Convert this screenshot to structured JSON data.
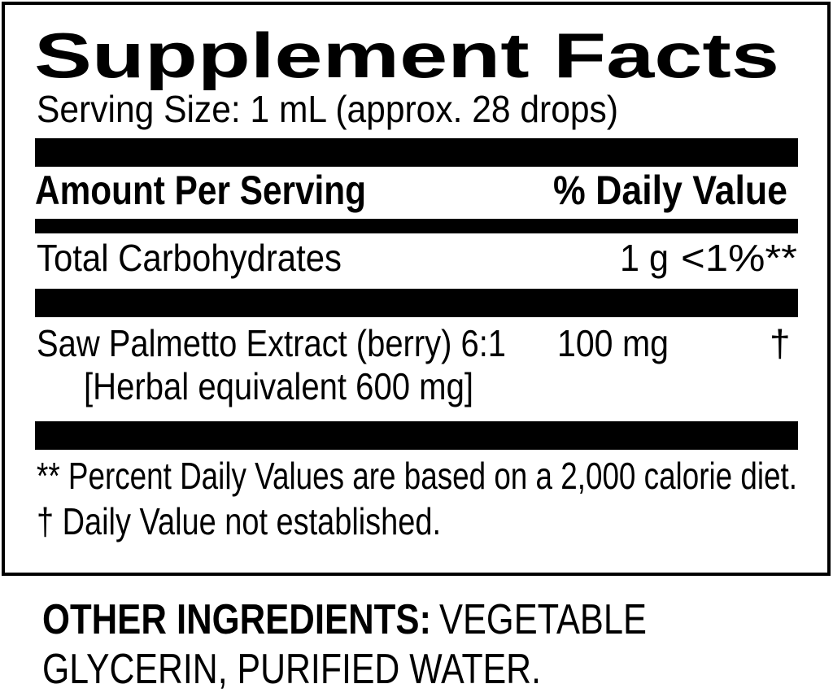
{
  "label": {
    "title": "Supplement Facts",
    "serving_size": "Serving Size: 1 mL (approx. 28 drops)",
    "header": {
      "amount": "Amount Per Serving",
      "daily_value": "% Daily Value"
    },
    "rows": [
      {
        "name": "Total Carbohydrates",
        "amount": "1 g",
        "dv": "<1%**"
      },
      {
        "name": "Saw Palmetto Extract (berry) 6:1",
        "sub": "[Herbal equivalent 600 mg]",
        "amount": "100 mg",
        "dv": "†"
      }
    ],
    "footnotes": [
      "** Percent Daily Values are based on a 2,000 calorie diet.",
      "† Daily Value not established."
    ]
  },
  "other_ingredients": {
    "label": "OTHER INGREDIENTS:",
    "line1": "VEGETABLE",
    "line2": "GLYCERIN, PURIFIED WATER."
  }
}
